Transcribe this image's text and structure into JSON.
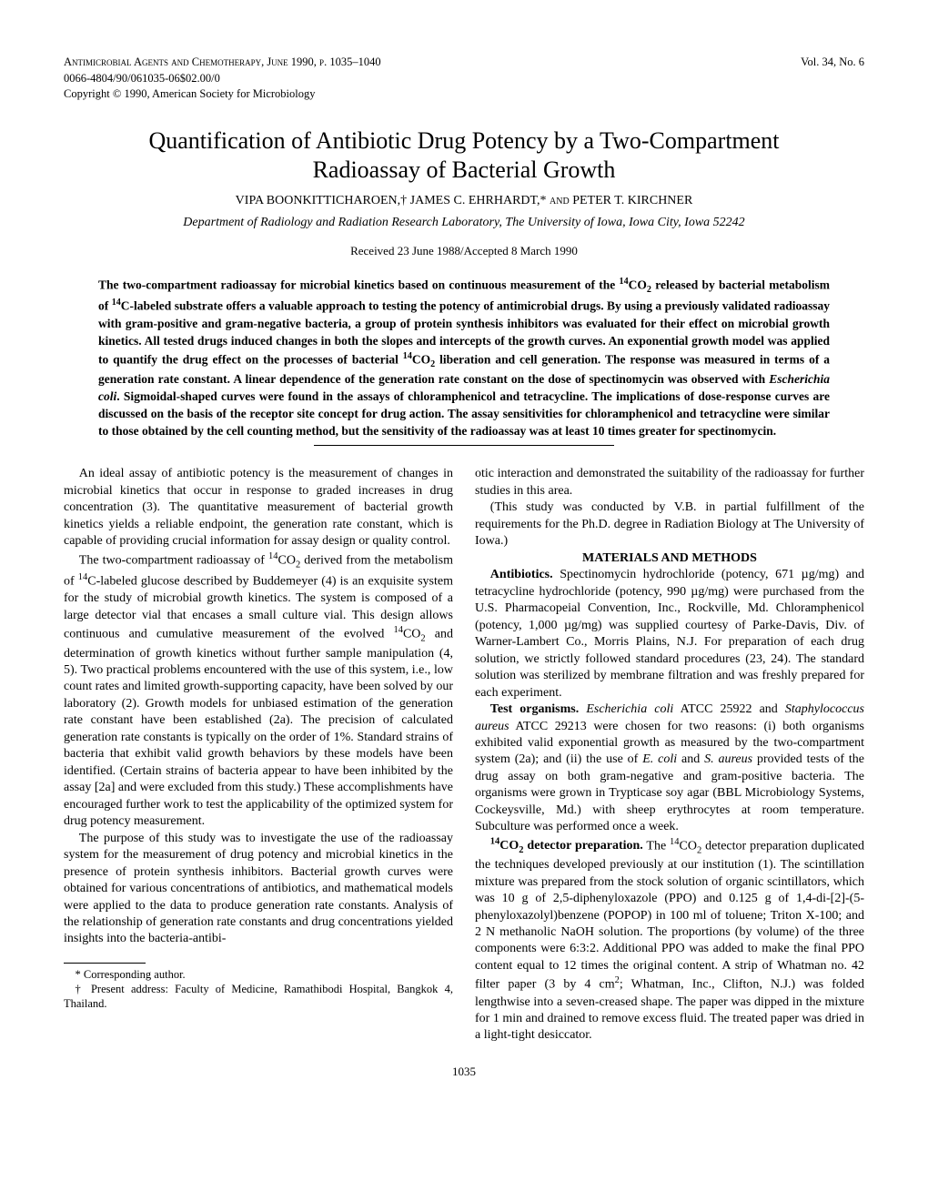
{
  "header": {
    "journal": "Antimicrobial Agents and Chemotherapy, June 1990, p. 1035–1040",
    "issn": "0066-4804/90/061035-06$02.00/0",
    "copyright": "Copyright © 1990, American Society for Microbiology",
    "volume": "Vol. 34, No. 6"
  },
  "title_line1": "Quantification of Antibiotic Drug Potency by a Two-Compartment",
  "title_line2": "Radioassay of Bacterial Growth",
  "authors": "VIPA BOONKITTICHAROEN,† JAMES C. EHRHARDT,* AND PETER T. KIRCHNER",
  "authors_small": " and ",
  "affiliation": "Department of Radiology and Radiation Research Laboratory, The University of Iowa, Iowa City, Iowa 52242",
  "received": "Received 23 June 1988/Accepted 8 March 1990",
  "abstract": {
    "p1a": "The two-compartment radioassay for microbial kinetics based on continuous measurement of the ",
    "p1b": "CO",
    "p1c": " released by bacterial metabolism of ",
    "p1d": "C-labeled substrate offers a valuable approach to testing the potency of antimicrobial drugs. By using a previously validated radioassay with gram-positive and gram-negative bacteria, a group of protein synthesis inhibitors was evaluated for their effect on microbial growth kinetics. All tested drugs induced changes in both the slopes and intercepts of the growth curves. An exponential growth model was applied to quantify the drug effect on the processes of bacterial ",
    "p1e": "CO",
    "p1f": " liberation and cell generation. The response was measured in terms of a generation rate constant. A linear dependence of the generation rate constant on the dose of spectinomycin was observed with ",
    "p1g": "Escherichia coli",
    "p1h": ". Sigmoidal-shaped curves were found in the assays of chloramphenicol and tetracycline. The implications of dose-response curves are discussed on the basis of the receptor site concept for drug action. The assay sensitivities for chloramphenicol and tetracycline were similar to those obtained by the cell counting method, but the sensitivity of the radioassay was at least 10 times greater for spectinomycin."
  },
  "leftcol": {
    "p1": "An ideal assay of antibiotic potency is the measurement of changes in microbial kinetics that occur in response to graded increases in drug concentration (3). The quantitative measurement of bacterial growth kinetics yields a reliable endpoint, the generation rate constant, which is capable of providing crucial information for assay design or quality control.",
    "p2a": "The two-compartment radioassay of ",
    "p2b": "CO",
    "p2c": " derived from the metabolism of ",
    "p2d": "C-labeled glucose described by Buddemeyer (4) is an exquisite system for the study of microbial growth kinetics. The system is composed of a large detector vial that encases a small culture vial. This design allows continuous and cumulative measurement of the evolved ",
    "p2e": "CO",
    "p2f": " and determination of growth kinetics without further sample manipulation (4, 5). Two practical problems encountered with the use of this system, i.e., low count rates and limited growth-supporting capacity, have been solved by our laboratory (2). Growth models for unbiased estimation of the generation rate constant have been established (2a). The precision of calculated generation rate constants is typically on the order of 1%. Standard strains of bacteria that exhibit valid growth behaviors by these models have been identified. (Certain strains of bacteria appear to have been inhibited by the assay [2a] and were excluded from this study.) These accomplishments have encouraged further work to test the applicability of the optimized system for drug potency measurement.",
    "p3": "The purpose of this study was to investigate the use of the radioassay system for the measurement of drug potency and microbial kinetics in the presence of protein synthesis inhibitors. Bacterial growth curves were obtained for various concentrations of antibiotics, and mathematical models were applied to the data to produce generation rate constants. Analysis of the relationship of generation rate constants and drug concentrations yielded insights into the bacteria-antibi-"
  },
  "rightcol": {
    "p1": "otic interaction and demonstrated the suitability of the radioassay for further studies in this area.",
    "p2": "(This study was conducted by V.B. in partial fulfillment of the requirements for the Ph.D. degree in Radiation Biology at The University of Iowa.)",
    "section": "MATERIALS AND METHODS",
    "p3a": "Antibiotics.",
    "p3b": " Spectinomycin hydrochloride (potency, 671 µg/mg) and tetracycline hydrochloride (potency, 990 µg/mg) were purchased from the U.S. Pharmacopeial Convention, Inc., Rockville, Md. Chloramphenicol (potency, 1,000 µg/mg) was supplied courtesy of Parke-Davis, Div. of Warner-Lambert Co., Morris Plains, N.J. For preparation of each drug solution, we strictly followed standard procedures (23, 24). The standard solution was sterilized by membrane filtration and was freshly prepared for each experiment.",
    "p4a": "Test organisms.",
    "p4b": " ",
    "p4c": "Escherichia coli",
    "p4d": " ATCC 25922 and ",
    "p4e": "Staphylococcus aureus",
    "p4f": " ATCC 29213 were chosen for two reasons: (i) both organisms exhibited valid exponential growth as measured by the two-compartment system (2a); and (ii) the use of ",
    "p4g": "E. coli",
    "p4h": " and ",
    "p4i": "S. aureus",
    "p4j": " provided tests of the drug assay on both gram-negative and gram-positive bacteria. The organisms were grown in Trypticase soy agar (BBL Microbiology Systems, Cockeysville, Md.) with sheep erythrocytes at room temperature. Subculture was performed once a week.",
    "p5a": "CO",
    "p5b": " detector preparation.",
    "p5c": " The ",
    "p5d": "CO",
    "p5e": " detector preparation duplicated the techniques developed previously at our institution (1). The scintillation mixture was prepared from the stock solution of organic scintillators, which was 10 g of 2,5-diphenyloxazole (PPO) and 0.125 g of 1,4-di-[2]-(5-phenyloxazolyl)benzene (POPOP) in 100 ml of toluene; Triton X-100; and 2 N methanolic NaOH solution. The proportions (by volume) of the three components were 6:3:2. Additional PPO was added to make the final PPO content equal to 12 times the original content. A strip of Whatman no. 42 filter paper (3 by 4 cm",
    "p5f": "; Whatman, Inc., Clifton, N.J.) was folded lengthwise into a seven-creased shape. The paper was dipped in the mixture for 1 min and drained to remove excess fluid. The treated paper was dried in a light-tight desiccator."
  },
  "footnotes": {
    "f1": "* Corresponding author.",
    "f2": "† Present address: Faculty of Medicine, Ramathibodi Hospital, Bangkok 4, Thailand."
  },
  "page_number": "1035"
}
